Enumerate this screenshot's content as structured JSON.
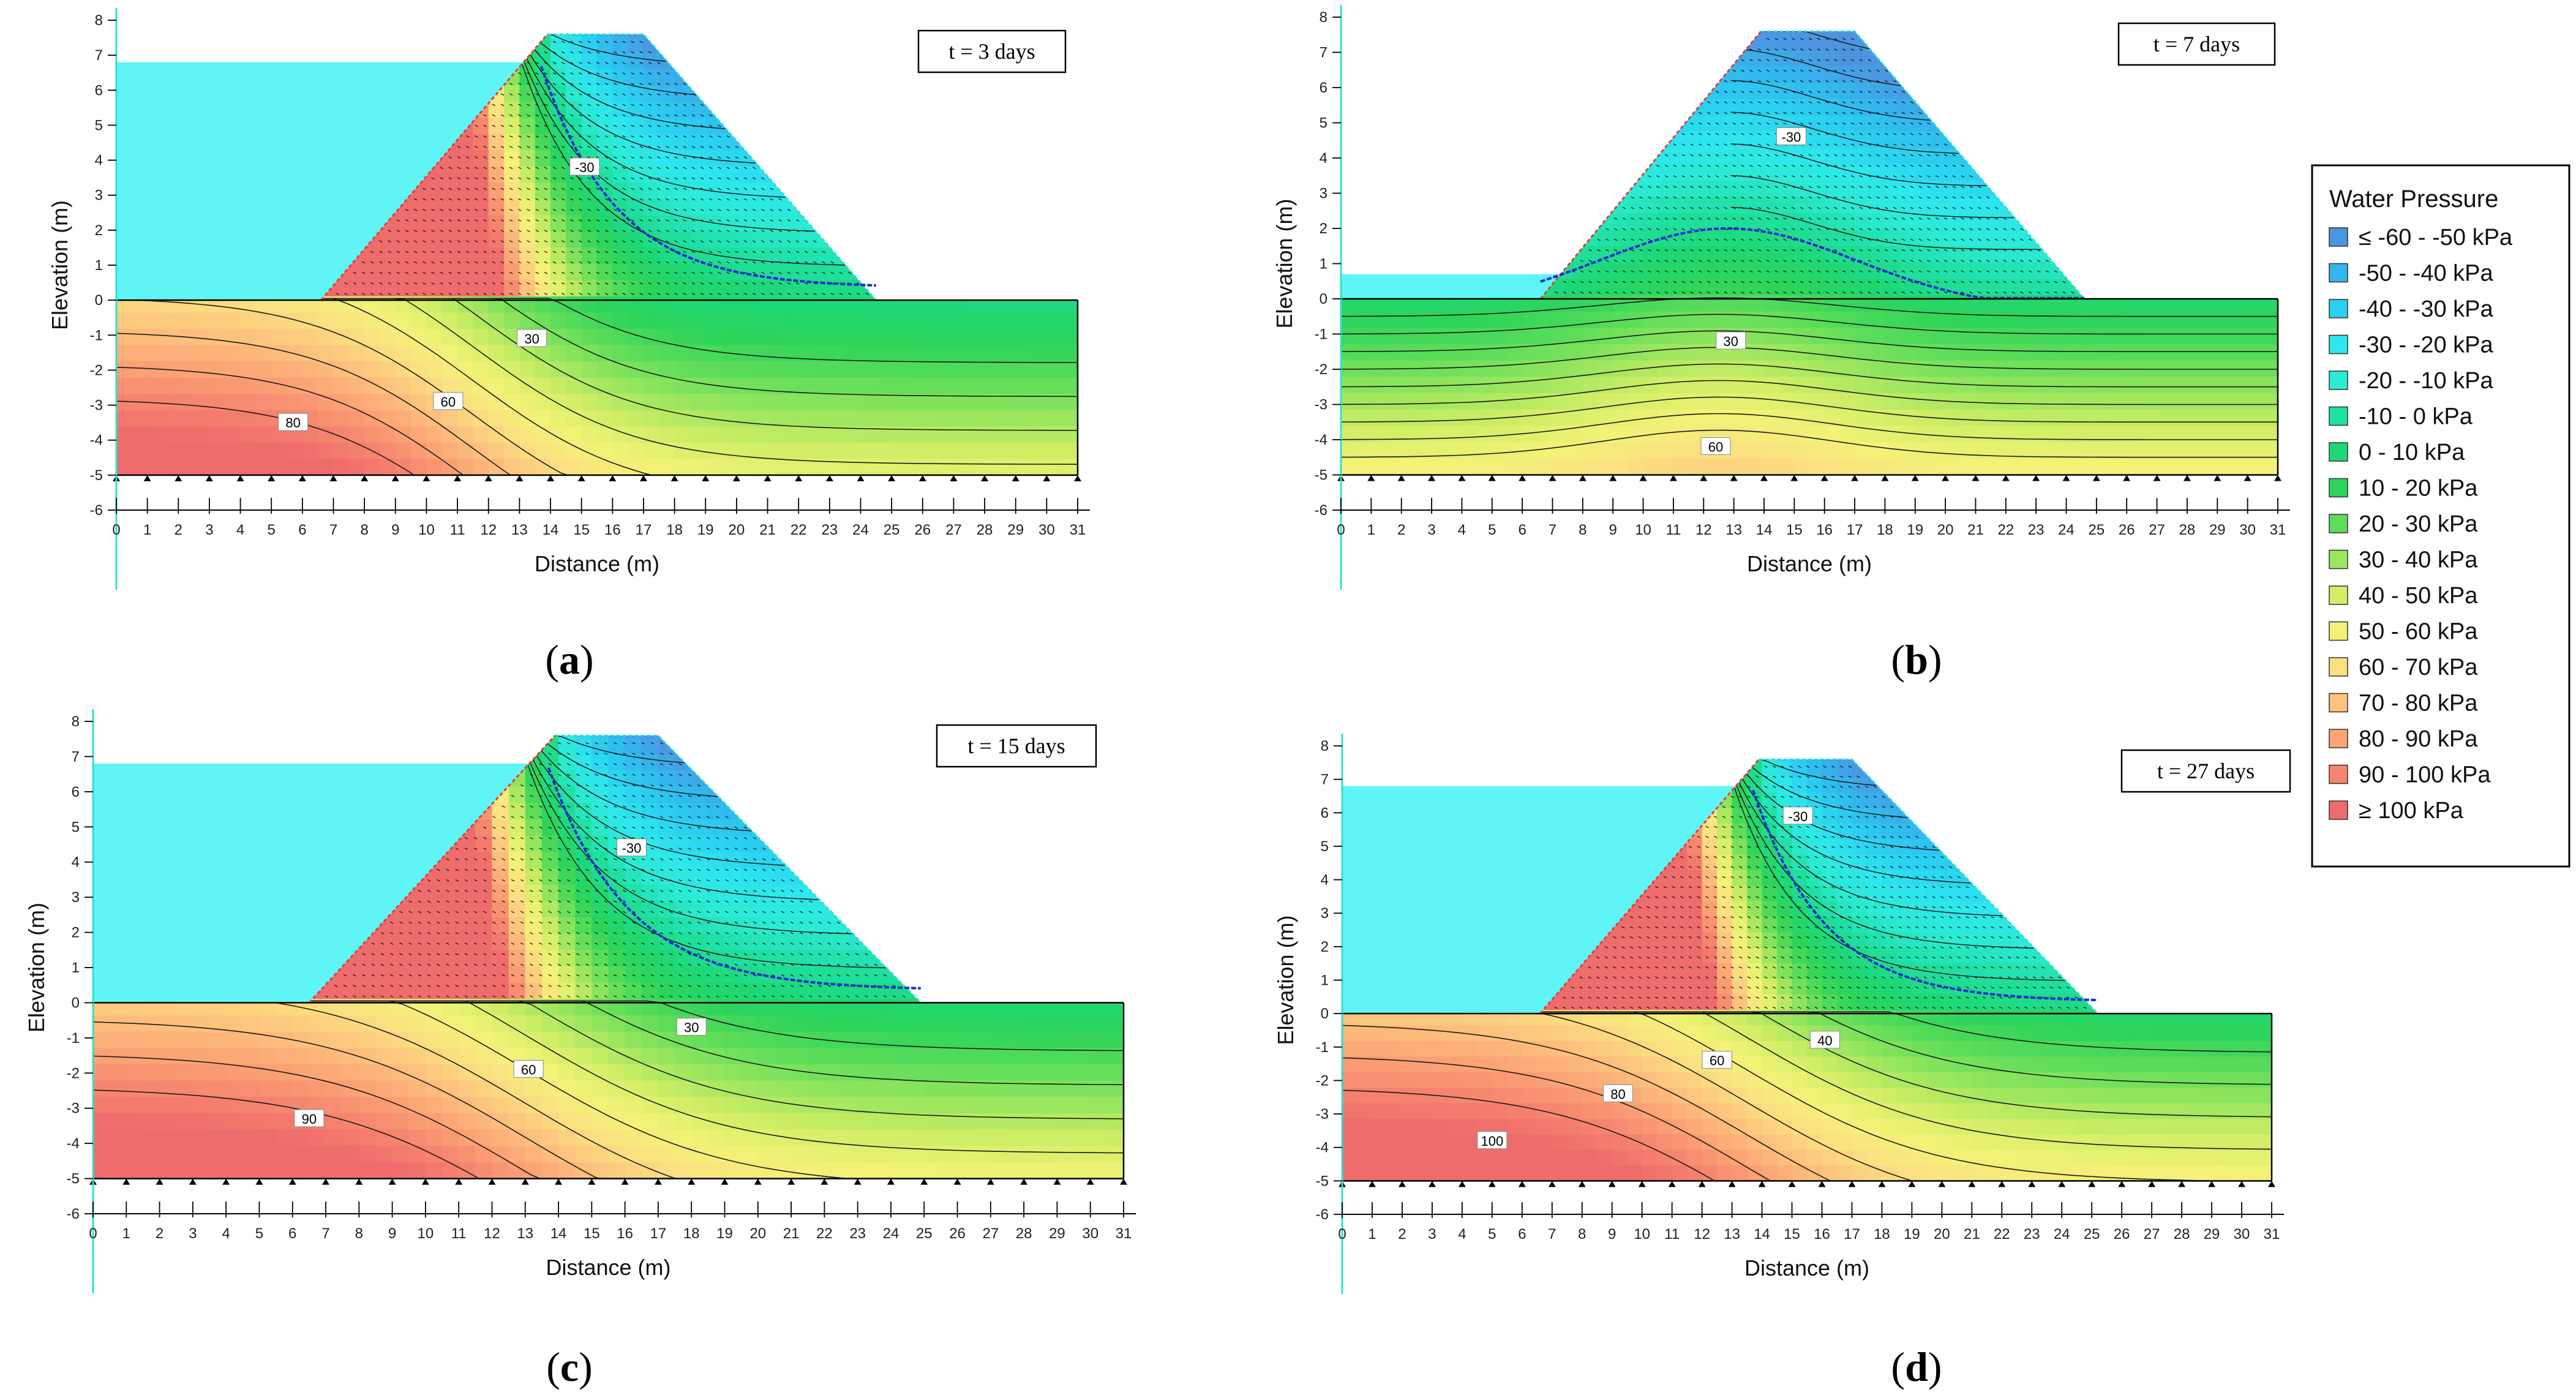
{
  "chart_data": [
    {
      "type": "contour",
      "panel": "a",
      "caption": "a",
      "time_label": "t = 3 days",
      "xlabel": "Distance (m)",
      "ylabel": "Elevation (m)",
      "xlim": [
        0,
        31
      ],
      "ylim": [
        -6,
        8
      ],
      "x_ticks": [
        "0",
        "1",
        "2",
        "3",
        "4",
        "5",
        "6",
        "7",
        "8",
        "9",
        "10",
        "11",
        "12",
        "13",
        "14",
        "15",
        "16",
        "17",
        "18",
        "19",
        "20",
        "21",
        "22",
        "23",
        "24",
        "25",
        "26",
        "27",
        "28",
        "29",
        "30",
        "31"
      ],
      "y_ticks": [
        "8",
        "7",
        "6",
        "5",
        "4",
        "3",
        "2",
        "1",
        "0",
        "-1",
        "-2",
        "-3",
        "-4",
        "-5",
        "-6"
      ],
      "reservoir_level": 6.8,
      "contour_labels": [
        {
          "text": "-30",
          "x": 15.1,
          "y": 3.8
        },
        {
          "text": "30",
          "x": 13.4,
          "y": -1.1
        },
        {
          "text": "60",
          "x": 10.7,
          "y": -2.9
        },
        {
          "text": "80",
          "x": 5.7,
          "y": -3.5
        }
      ]
    },
    {
      "type": "contour",
      "panel": "b",
      "caption": "b",
      "time_label": "t = 7 days",
      "xlabel": "Distance (m)",
      "ylabel": "Elevation (m)",
      "xlim": [
        0,
        31
      ],
      "ylim": [
        -6,
        8
      ],
      "x_ticks": [
        "0",
        "1",
        "2",
        "3",
        "4",
        "5",
        "6",
        "7",
        "8",
        "9",
        "10",
        "11",
        "12",
        "13",
        "14",
        "15",
        "16",
        "17",
        "18",
        "19",
        "20",
        "21",
        "22",
        "23",
        "24",
        "25",
        "26",
        "27",
        "28",
        "29",
        "30",
        "31"
      ],
      "y_ticks": [
        "8",
        "7",
        "6",
        "5",
        "4",
        "3",
        "2",
        "1",
        "0",
        "-1",
        "-2",
        "-3",
        "-4",
        "-5",
        "-6"
      ],
      "reservoir_level": 0.7,
      "contour_labels": [
        {
          "text": "-30",
          "x": 14.9,
          "y": 4.6
        },
        {
          "text": "30",
          "x": 12.9,
          "y": -1.2
        },
        {
          "text": "60",
          "x": 12.4,
          "y": -4.2
        }
      ]
    },
    {
      "type": "contour",
      "panel": "c",
      "caption": "c",
      "time_label": "t = 15 days",
      "xlabel": "Distance (m)",
      "ylabel": "Elevation (m)",
      "xlim": [
        0,
        31
      ],
      "ylim": [
        -6,
        8
      ],
      "x_ticks": [
        "0",
        "1",
        "2",
        "3",
        "4",
        "5",
        "6",
        "7",
        "8",
        "9",
        "10",
        "11",
        "12",
        "13",
        "14",
        "15",
        "16",
        "17",
        "18",
        "19",
        "20",
        "21",
        "22",
        "23",
        "24",
        "25",
        "26",
        "27",
        "28",
        "29",
        "30",
        "31"
      ],
      "y_ticks": [
        "8",
        "7",
        "6",
        "5",
        "4",
        "3",
        "2",
        "1",
        "0",
        "-1",
        "-2",
        "-3",
        "-4",
        "-5",
        "-6"
      ],
      "reservoir_level": 6.8,
      "contour_labels": [
        {
          "text": "-30",
          "x": 16.2,
          "y": 4.4
        },
        {
          "text": "30",
          "x": 18.0,
          "y": -0.7
        },
        {
          "text": "60",
          "x": 13.1,
          "y": -1.9
        },
        {
          "text": "90",
          "x": 6.5,
          "y": -3.3
        }
      ]
    },
    {
      "type": "contour",
      "panel": "d",
      "caption": "d",
      "time_label": "t = 27 days",
      "xlabel": "Distance (m)",
      "ylabel": "Elevation (m)",
      "xlim": [
        0,
        31
      ],
      "ylim": [
        -6,
        8
      ],
      "x_ticks": [
        "0",
        "1",
        "2",
        "3",
        "4",
        "5",
        "6",
        "7",
        "8",
        "9",
        "10",
        "11",
        "12",
        "13",
        "14",
        "15",
        "16",
        "17",
        "18",
        "19",
        "20",
        "21",
        "22",
        "23",
        "24",
        "25",
        "26",
        "27",
        "28",
        "29",
        "30",
        "31"
      ],
      "y_ticks": [
        "8",
        "7",
        "6",
        "5",
        "4",
        "3",
        "2",
        "1",
        "0",
        "-1",
        "-2",
        "-3",
        "-4",
        "-5",
        "-6"
      ],
      "reservoir_level": 6.8,
      "contour_labels": [
        {
          "text": "-30",
          "x": 15.2,
          "y": 5.9
        },
        {
          "text": "40",
          "x": 16.1,
          "y": -0.8
        },
        {
          "text": "60",
          "x": 12.5,
          "y": -1.4
        },
        {
          "text": "80",
          "x": 9.2,
          "y": -2.4
        },
        {
          "text": "100",
          "x": 5.0,
          "y": -3.8
        }
      ]
    }
  ],
  "legend": {
    "title": "Water Pressure",
    "items": [
      {
        "label": "≤ -60 - -50 kPa",
        "color": "#4d95e0"
      },
      {
        "label": "-50 - -40 kPa",
        "color": "#33b6ee"
      },
      {
        "label": "-40 - -30 kPa",
        "color": "#2ad0f0"
      },
      {
        "label": "-30 - -20 kPa",
        "color": "#2ee6ef"
      },
      {
        "label": "-20 - -10 kPa",
        "color": "#2bebd4"
      },
      {
        "label": "-10 - 0 kPa",
        "color": "#1fe0a3"
      },
      {
        "label": "0 - 10 kPa",
        "color": "#1ed875"
      },
      {
        "label": "10 - 20 kPa",
        "color": "#2ed45a"
      },
      {
        "label": "20 - 30 kPa",
        "color": "#5fdd5a"
      },
      {
        "label": "30 - 40 kPa",
        "color": "#9be65e"
      },
      {
        "label": "40 - 50 kPa",
        "color": "#d2ee66"
      },
      {
        "label": "50 - 60 kPa",
        "color": "#f3f277"
      },
      {
        "label": "60 - 70 kPa",
        "color": "#fbe081"
      },
      {
        "label": "70 - 80 kPa",
        "color": "#fdc27e"
      },
      {
        "label": "80 - 90 kPa",
        "color": "#fba475"
      },
      {
        "label": "90 - 100 kPa",
        "color": "#f6856f"
      },
      {
        "label": "≥ 100 kPa",
        "color": "#ef6c6c"
      }
    ]
  },
  "colors": {
    "reservoir": "#5ff5f5",
    "contour_line": "#1a1a1a",
    "phreatic_line": "#1c2bd0",
    "boundary_red": "#e04040",
    "axis_cyan": "#30e0d0"
  }
}
